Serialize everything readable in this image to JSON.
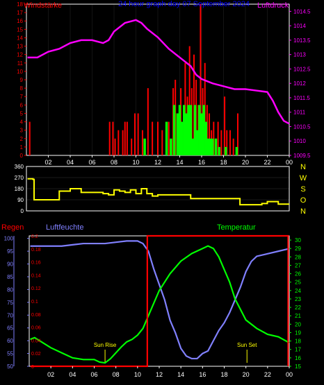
{
  "title": "24 hour graph day  07 September 2024",
  "colors": {
    "wind": "#ff0000",
    "gust": "#00ff00",
    "pressure": "#ff00ff",
    "direction": "#ffff00",
    "rain": "#ff0000",
    "humidity": "#8080ff",
    "temperature": "#00ff00",
    "sunmarker": "#ffff00",
    "axis": "#ffffff",
    "titlecolor": "#0000ff"
  },
  "chart_data": [
    {
      "type": "bar",
      "labels": {
        "left": "Windstärke",
        "right": "Luftdruck"
      },
      "x_ticks": [
        "02",
        "04",
        "06",
        "08",
        "10",
        "12",
        "14",
        "16",
        "18",
        "20",
        "22",
        "00"
      ],
      "left_ticks": [
        "0",
        "1",
        "2",
        "3",
        "4",
        "5",
        "6",
        "7",
        "8",
        "9",
        "10",
        "11",
        "12",
        "13",
        "14",
        "15",
        "16",
        "17",
        "18"
      ],
      "right_ticks": [
        "1009.5",
        "1010",
        "1010.5",
        "1011",
        "1011.5",
        "1012",
        "1012.5",
        "1013",
        "1013.5",
        "1014",
        "1014.5"
      ],
      "ylim": [
        0,
        18
      ],
      "y2lim": [
        1009.5,
        1014.75
      ],
      "series": [
        {
          "kind": "line",
          "axis": "right",
          "hours": [
            0.1,
            1,
            2,
            3,
            4,
            5,
            6,
            7,
            7.5,
            8,
            9,
            10,
            10.5,
            11,
            12,
            13,
            14,
            15,
            15.5,
            16,
            17,
            18,
            19,
            20,
            21,
            22,
            22.5,
            23,
            23.5,
            24
          ],
          "values": [
            1012.9,
            1012.9,
            1013.1,
            1013.2,
            1013.4,
            1013.5,
            1013.5,
            1013.4,
            1013.5,
            1013.8,
            1014.1,
            1014.2,
            1014.1,
            1013.9,
            1013.6,
            1013.2,
            1012.9,
            1012.6,
            1012.3,
            1012.15,
            1012.0,
            1011.9,
            1011.8,
            1011.8,
            1011.75,
            1011.7,
            1011.4,
            1011.0,
            1010.7,
            1010.6
          ]
        },
        {
          "kind": "bars",
          "name": "wind",
          "axis": "left",
          "hours": [
            0.3,
            7.6,
            7.9,
            8.1,
            8.4,
            8.8,
            9.0,
            9.2,
            9.6,
            9.9,
            10.2,
            10.6,
            11.1,
            11.5,
            12.0,
            12.4,
            12.8,
            13.0,
            13.4,
            13.6,
            13.9,
            14.1,
            14.3,
            14.5,
            14.7,
            14.9,
            15.1,
            15.3,
            15.5,
            15.7,
            15.9,
            16.1,
            16.3,
            16.5,
            16.7,
            16.9,
            17.1,
            17.3,
            17.5,
            17.8,
            18.1,
            18.3,
            18.6,
            18.9,
            19.3
          ],
          "values": [
            4,
            4,
            4,
            2,
            3,
            3,
            4,
            4,
            2,
            5,
            5,
            3,
            8,
            4,
            4,
            3,
            2,
            4,
            8,
            9,
            4,
            8,
            3,
            11,
            7,
            13,
            8,
            12,
            9,
            6,
            18,
            8,
            11,
            6,
            5,
            3,
            4,
            2,
            4,
            3,
            7,
            3,
            3,
            2,
            5
          ]
        },
        {
          "kind": "bars",
          "name": "gust",
          "axis": "left",
          "hours": [
            10.8,
            12.8,
            13.2,
            13.5,
            13.8,
            14.0,
            14.2,
            14.4,
            14.6,
            14.8,
            15.0,
            15.2,
            15.4,
            15.6,
            15.8,
            16.0,
            16.2,
            16.4,
            16.6,
            16.8,
            17.0,
            17.3,
            17.6,
            18.2,
            19.2
          ],
          "values": [
            2,
            4,
            2,
            6,
            5,
            6,
            4,
            6,
            5,
            6,
            6,
            2,
            6,
            3,
            6,
            5,
            6,
            4,
            2,
            2,
            2,
            2,
            1,
            1,
            1
          ]
        }
      ]
    },
    {
      "type": "line",
      "labels": {
        "right": [
          "N",
          "W",
          "S",
          "O",
          "N"
        ]
      },
      "left_ticks": [
        "0",
        "90",
        "180",
        "270",
        "360"
      ],
      "ylim": [
        0,
        360
      ],
      "x_ticks": [
        "02",
        "04",
        "06",
        "08",
        "10",
        "12",
        "14",
        "16",
        "18",
        "20",
        "22",
        "00"
      ],
      "series": [
        {
          "name": "direction",
          "hours": [
            0.1,
            0.6,
            0.7,
            2.5,
            3,
            4,
            5,
            6,
            7,
            7.5,
            8,
            8.5,
            9,
            9.5,
            10,
            10.5,
            11,
            11.5,
            12,
            13,
            14,
            15,
            16,
            17,
            18,
            19,
            19.5,
            20,
            21,
            21.5,
            22,
            23,
            24
          ],
          "values": [
            260,
            255,
            90,
            90,
            160,
            180,
            150,
            150,
            140,
            130,
            170,
            160,
            150,
            170,
            140,
            180,
            140,
            120,
            130,
            130,
            130,
            100,
            100,
            100,
            100,
            100,
            50,
            50,
            50,
            60,
            75,
            55,
            55
          ]
        }
      ]
    },
    {
      "type": "line",
      "labels": {
        "left": "Regen",
        "mid": "Luftfeuchte",
        "right": "Temperatur"
      },
      "rain_ticks": [
        "0",
        "0.02",
        "0.04",
        "0.06",
        "0.08",
        "0.1",
        "0.12",
        "0.14",
        "0.16",
        "0.18",
        "0.2"
      ],
      "humidity_ticks": [
        "50",
        "55",
        "60",
        "65",
        "70",
        "75",
        "80",
        "85",
        "90",
        "95",
        "100"
      ],
      "temp_ticks": [
        "15",
        "16",
        "17",
        "18",
        "19",
        "20",
        "21",
        "22",
        "23",
        "24",
        "25",
        "26",
        "27",
        "28",
        "29",
        "30"
      ],
      "x_ticks": [
        "02",
        "04",
        "06",
        "08",
        "10",
        "12",
        "14",
        "16",
        "18",
        "20",
        "22",
        "00"
      ],
      "rainlim": [
        0,
        0.2
      ],
      "humlim": [
        50,
        101
      ],
      "templim": [
        15,
        30.5
      ],
      "annotations": [
        {
          "label": "Sun Rise",
          "hour": 7.0
        },
        {
          "label": "Sun Set",
          "hour": 20.1
        }
      ],
      "series": [
        {
          "name": "humidity",
          "hours": [
            0.1,
            1,
            2,
            3,
            4,
            5,
            6,
            7,
            8,
            9,
            10,
            10.5,
            11,
            11.5,
            12,
            12.5,
            13,
            13.5,
            14,
            14.5,
            15,
            15.5,
            16,
            16.5,
            17,
            17.5,
            18,
            18.5,
            19,
            19.5,
            20,
            20.5,
            21,
            22,
            23,
            24
          ],
          "values": [
            97,
            97,
            97,
            97,
            97.5,
            98,
            98,
            98,
            98.5,
            99,
            99,
            98,
            95,
            88,
            82,
            76,
            68,
            63,
            57,
            54,
            53,
            53,
            55,
            56,
            60,
            64,
            67,
            71,
            76,
            81,
            87,
            91,
            93,
            94,
            95,
            96
          ]
        },
        {
          "name": "temperature",
          "hours": [
            0.1,
            0.5,
            1,
            2,
            3,
            4,
            5,
            6,
            6.5,
            7,
            7.5,
            8,
            8.5,
            9,
            9.5,
            10,
            10.5,
            11,
            12,
            13,
            14,
            15,
            16,
            16.5,
            17,
            17.5,
            18,
            18.5,
            19,
            20,
            21,
            22,
            23,
            24
          ],
          "values": [
            18.2,
            18.4,
            18.0,
            17.2,
            16.6,
            16.0,
            15.8,
            15.8,
            15.5,
            15.4,
            15.9,
            16.6,
            17.3,
            17.9,
            18.2,
            18.7,
            19.5,
            21.0,
            24.0,
            26.0,
            27.5,
            28.4,
            29.0,
            29.3,
            29.0,
            28.0,
            26.5,
            25.0,
            23.0,
            20.5,
            19.5,
            18.8,
            18.5,
            17.8
          ]
        },
        {
          "name": "rain",
          "hours": [
            0.1,
            10.9,
            10.9,
            23.9,
            23.9
          ],
          "values": [
            0,
            0,
            0.2,
            0.2,
            0
          ]
        }
      ]
    }
  ]
}
